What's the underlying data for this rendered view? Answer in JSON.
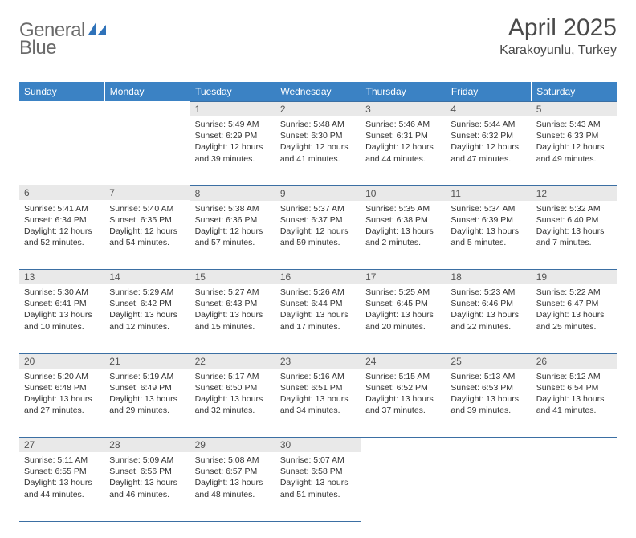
{
  "brand": {
    "general": "General",
    "blue": "Blue"
  },
  "title": "April 2025",
  "location": "Karakoyunlu, Turkey",
  "colors": {
    "header_bg": "#3b82c4",
    "header_text": "#ffffff",
    "daynum_bg": "#e9e9e9",
    "rule": "#3b6fa3",
    "logo_gray": "#6a6a6a",
    "logo_blue": "#2f72b9"
  },
  "weekdays": [
    "Sunday",
    "Monday",
    "Tuesday",
    "Wednesday",
    "Thursday",
    "Friday",
    "Saturday"
  ],
  "weeks": [
    [
      null,
      null,
      {
        "n": "1",
        "sr": "Sunrise: 5:49 AM",
        "ss": "Sunset: 6:29 PM",
        "d1": "Daylight: 12 hours",
        "d2": "and 39 minutes."
      },
      {
        "n": "2",
        "sr": "Sunrise: 5:48 AM",
        "ss": "Sunset: 6:30 PM",
        "d1": "Daylight: 12 hours",
        "d2": "and 41 minutes."
      },
      {
        "n": "3",
        "sr": "Sunrise: 5:46 AM",
        "ss": "Sunset: 6:31 PM",
        "d1": "Daylight: 12 hours",
        "d2": "and 44 minutes."
      },
      {
        "n": "4",
        "sr": "Sunrise: 5:44 AM",
        "ss": "Sunset: 6:32 PM",
        "d1": "Daylight: 12 hours",
        "d2": "and 47 minutes."
      },
      {
        "n": "5",
        "sr": "Sunrise: 5:43 AM",
        "ss": "Sunset: 6:33 PM",
        "d1": "Daylight: 12 hours",
        "d2": "and 49 minutes."
      }
    ],
    [
      {
        "n": "6",
        "sr": "Sunrise: 5:41 AM",
        "ss": "Sunset: 6:34 PM",
        "d1": "Daylight: 12 hours",
        "d2": "and 52 minutes."
      },
      {
        "n": "7",
        "sr": "Sunrise: 5:40 AM",
        "ss": "Sunset: 6:35 PM",
        "d1": "Daylight: 12 hours",
        "d2": "and 54 minutes."
      },
      {
        "n": "8",
        "sr": "Sunrise: 5:38 AM",
        "ss": "Sunset: 6:36 PM",
        "d1": "Daylight: 12 hours",
        "d2": "and 57 minutes."
      },
      {
        "n": "9",
        "sr": "Sunrise: 5:37 AM",
        "ss": "Sunset: 6:37 PM",
        "d1": "Daylight: 12 hours",
        "d2": "and 59 minutes."
      },
      {
        "n": "10",
        "sr": "Sunrise: 5:35 AM",
        "ss": "Sunset: 6:38 PM",
        "d1": "Daylight: 13 hours",
        "d2": "and 2 minutes."
      },
      {
        "n": "11",
        "sr": "Sunrise: 5:34 AM",
        "ss": "Sunset: 6:39 PM",
        "d1": "Daylight: 13 hours",
        "d2": "and 5 minutes."
      },
      {
        "n": "12",
        "sr": "Sunrise: 5:32 AM",
        "ss": "Sunset: 6:40 PM",
        "d1": "Daylight: 13 hours",
        "d2": "and 7 minutes."
      }
    ],
    [
      {
        "n": "13",
        "sr": "Sunrise: 5:30 AM",
        "ss": "Sunset: 6:41 PM",
        "d1": "Daylight: 13 hours",
        "d2": "and 10 minutes."
      },
      {
        "n": "14",
        "sr": "Sunrise: 5:29 AM",
        "ss": "Sunset: 6:42 PM",
        "d1": "Daylight: 13 hours",
        "d2": "and 12 minutes."
      },
      {
        "n": "15",
        "sr": "Sunrise: 5:27 AM",
        "ss": "Sunset: 6:43 PM",
        "d1": "Daylight: 13 hours",
        "d2": "and 15 minutes."
      },
      {
        "n": "16",
        "sr": "Sunrise: 5:26 AM",
        "ss": "Sunset: 6:44 PM",
        "d1": "Daylight: 13 hours",
        "d2": "and 17 minutes."
      },
      {
        "n": "17",
        "sr": "Sunrise: 5:25 AM",
        "ss": "Sunset: 6:45 PM",
        "d1": "Daylight: 13 hours",
        "d2": "and 20 minutes."
      },
      {
        "n": "18",
        "sr": "Sunrise: 5:23 AM",
        "ss": "Sunset: 6:46 PM",
        "d1": "Daylight: 13 hours",
        "d2": "and 22 minutes."
      },
      {
        "n": "19",
        "sr": "Sunrise: 5:22 AM",
        "ss": "Sunset: 6:47 PM",
        "d1": "Daylight: 13 hours",
        "d2": "and 25 minutes."
      }
    ],
    [
      {
        "n": "20",
        "sr": "Sunrise: 5:20 AM",
        "ss": "Sunset: 6:48 PM",
        "d1": "Daylight: 13 hours",
        "d2": "and 27 minutes."
      },
      {
        "n": "21",
        "sr": "Sunrise: 5:19 AM",
        "ss": "Sunset: 6:49 PM",
        "d1": "Daylight: 13 hours",
        "d2": "and 29 minutes."
      },
      {
        "n": "22",
        "sr": "Sunrise: 5:17 AM",
        "ss": "Sunset: 6:50 PM",
        "d1": "Daylight: 13 hours",
        "d2": "and 32 minutes."
      },
      {
        "n": "23",
        "sr": "Sunrise: 5:16 AM",
        "ss": "Sunset: 6:51 PM",
        "d1": "Daylight: 13 hours",
        "d2": "and 34 minutes."
      },
      {
        "n": "24",
        "sr": "Sunrise: 5:15 AM",
        "ss": "Sunset: 6:52 PM",
        "d1": "Daylight: 13 hours",
        "d2": "and 37 minutes."
      },
      {
        "n": "25",
        "sr": "Sunrise: 5:13 AM",
        "ss": "Sunset: 6:53 PM",
        "d1": "Daylight: 13 hours",
        "d2": "and 39 minutes."
      },
      {
        "n": "26",
        "sr": "Sunrise: 5:12 AM",
        "ss": "Sunset: 6:54 PM",
        "d1": "Daylight: 13 hours",
        "d2": "and 41 minutes."
      }
    ],
    [
      {
        "n": "27",
        "sr": "Sunrise: 5:11 AM",
        "ss": "Sunset: 6:55 PM",
        "d1": "Daylight: 13 hours",
        "d2": "and 44 minutes."
      },
      {
        "n": "28",
        "sr": "Sunrise: 5:09 AM",
        "ss": "Sunset: 6:56 PM",
        "d1": "Daylight: 13 hours",
        "d2": "and 46 minutes."
      },
      {
        "n": "29",
        "sr": "Sunrise: 5:08 AM",
        "ss": "Sunset: 6:57 PM",
        "d1": "Daylight: 13 hours",
        "d2": "and 48 minutes."
      },
      {
        "n": "30",
        "sr": "Sunrise: 5:07 AM",
        "ss": "Sunset: 6:58 PM",
        "d1": "Daylight: 13 hours",
        "d2": "and 51 minutes."
      },
      null,
      null,
      null
    ]
  ]
}
